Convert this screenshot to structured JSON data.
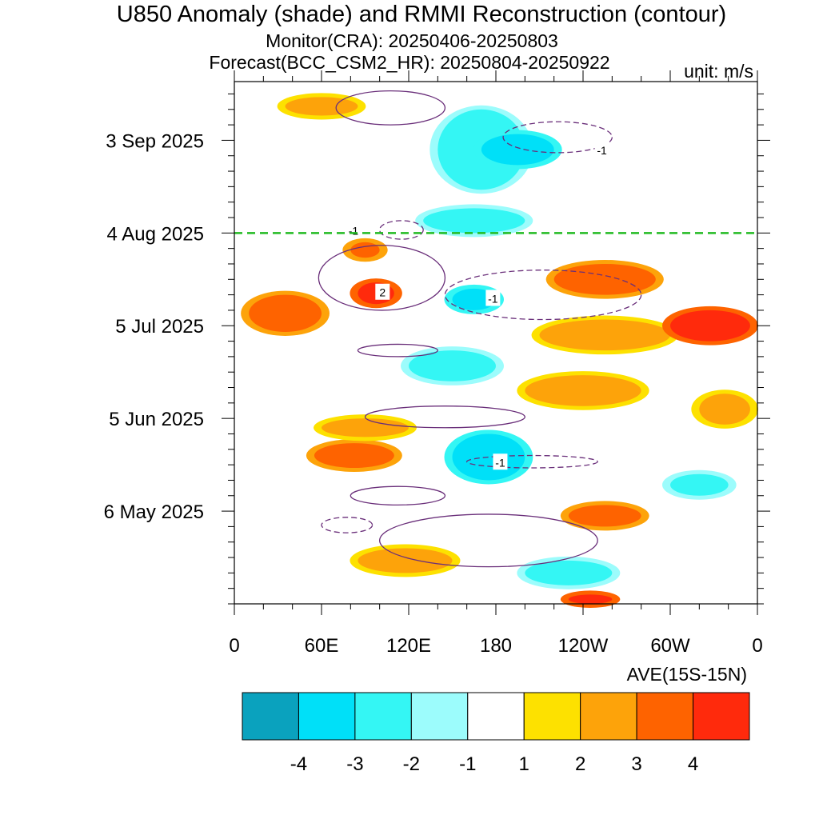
{
  "chart_data": {
    "type": "heatmap",
    "title": "U850 Anomaly (shade) and RMMI Reconstruction (contour)",
    "subtitle_monitor": "Monitor(CRA): 20250406-20250803",
    "subtitle_forecast": "Forecast(BCC_CSM2_HR): 20250804-20250922",
    "unit_label": "unit: m/s",
    "region_label": "AVE(15S-15N)",
    "x_axis": {
      "ticks": [
        "0",
        "60E",
        "120E",
        "180",
        "120W",
        "60W",
        "0"
      ],
      "lon_values": [
        0,
        60,
        120,
        180,
        240,
        300,
        360
      ],
      "range": [
        0,
        360
      ]
    },
    "y_axis": {
      "ticks": [
        "3 Sep 2025",
        "4 Aug 2025",
        "5 Jul 2025",
        "5 Jun 2025",
        "6 May 2025"
      ],
      "day_values": [
        150,
        120,
        90,
        60,
        30
      ],
      "range": [
        "2025-04-06",
        "2025-09-22"
      ]
    },
    "forecast_start_line": {
      "date": "2025-08-04",
      "color": "#22bb22"
    },
    "colorbar": {
      "labels": [
        "-4",
        "-3",
        "-2",
        "-1",
        "1",
        "2",
        "3",
        "4"
      ],
      "colors": [
        "#0aa2be",
        "#00e0f8",
        "#34f6f4",
        "#9cfcfc",
        "#ffffff",
        "#fde100",
        "#fda30a",
        "#fe6300",
        "#ff2a0c"
      ]
    },
    "contour_labels": [
      "-1",
      "-1",
      "2",
      "-1",
      "-1"
    ],
    "shaded_regions": [
      {
        "lon": [
          35,
          85
        ],
        "days": [
          158,
          164
        ],
        "level": 2
      },
      {
        "lon": [
          80,
          100
        ],
        "days": [
          112,
          117
        ],
        "level": 3
      },
      {
        "lon": [
          85,
          110
        ],
        "days": [
          97,
          104
        ],
        "level": 4
      },
      {
        "lon": [
          10,
          60
        ],
        "days": [
          88,
          100
        ],
        "level": 3
      },
      {
        "lon": [
          140,
          200
        ],
        "days": [
          134,
          160
        ],
        "level": -2
      },
      {
        "lon": [
          170,
          220
        ],
        "days": [
          142,
          152
        ],
        "level": -3
      },
      {
        "lon": [
          130,
          200
        ],
        "days": [
          120,
          128
        ],
        "level": -2
      },
      {
        "lon": [
          150,
          180
        ],
        "days": [
          95,
          102
        ],
        "level": -3
      },
      {
        "lon": [
          120,
          180
        ],
        "days": [
          72,
          82
        ],
        "level": -2
      },
      {
        "lon": [
          150,
          200
        ],
        "days": [
          40,
          55
        ],
        "level": -3
      },
      {
        "lon": [
          200,
          260
        ],
        "days": [
          6,
          14
        ],
        "level": -2
      },
      {
        "lon": [
          210,
          300
        ],
        "days": [
          82,
          92
        ],
        "level": 2
      },
      {
        "lon": [
          220,
          290
        ],
        "days": [
          100,
          110
        ],
        "level": 3
      },
      {
        "lon": [
          300,
          355
        ],
        "days": [
          85,
          95
        ],
        "level": 4
      },
      {
        "lon": [
          230,
          280
        ],
        "days": [
          25,
          32
        ],
        "level": 3
      },
      {
        "lon": [
          200,
          280
        ],
        "days": [
          64,
          74
        ],
        "level": 2
      },
      {
        "lon": [
          230,
          260
        ],
        "days": [
          0,
          3
        ],
        "level": 4
      },
      {
        "lon": [
          55,
          110
        ],
        "days": [
          44,
          52
        ],
        "level": 3
      },
      {
        "lon": [
          85,
          150
        ],
        "days": [
          10,
          18
        ],
        "level": 2
      },
      {
        "lon": [
          60,
          120
        ],
        "days": [
          54,
          60
        ],
        "level": 2
      },
      {
        "lon": [
          320,
          355
        ],
        "days": [
          58,
          68
        ],
        "level": 2
      },
      {
        "lon": [
          300,
          340
        ],
        "days": [
          35,
          42
        ],
        "level": -2
      }
    ],
    "contours": [
      {
        "level": -1,
        "lon": [
          185,
          260
        ],
        "days": [
          146,
          156
        ],
        "label_at": [
          253,
          147
        ]
      },
      {
        "level": -1,
        "lon": [
          100,
          130
        ],
        "days": [
          118,
          124
        ],
        "label_at": [
          82,
          121
        ]
      },
      {
        "level": 2,
        "lon": [
          58,
          145
        ],
        "days": [
          95,
          116
        ],
        "label_at": [
          102,
          101
        ]
      },
      {
        "level": -1,
        "lon": [
          145,
          280
        ],
        "days": [
          92,
          108
        ],
        "label_at": [
          178,
          99
        ]
      },
      {
        "level": -1,
        "lon": [
          160,
          250
        ],
        "days": [
          44,
          48
        ],
        "label_at": [
          183,
          46
        ]
      },
      {
        "level": 1,
        "lon": [
          85,
          140
        ],
        "days": [
          80,
          84
        ],
        "label_at": null
      },
      {
        "level": 1,
        "lon": [
          90,
          200
        ],
        "days": [
          57,
          64
        ],
        "label_at": null
      },
      {
        "level": 1,
        "lon": [
          80,
          145
        ],
        "days": [
          32,
          38
        ],
        "label_at": null
      },
      {
        "level": 1,
        "lon": [
          100,
          250
        ],
        "days": [
          12,
          29
        ],
        "label_at": null
      },
      {
        "level": -1,
        "lon": [
          60,
          95
        ],
        "days": [
          23,
          28
        ],
        "label_at": null
      },
      {
        "level": 1,
        "lon": [
          70,
          145
        ],
        "days": [
          155,
          166
        ],
        "label_at": null
      }
    ]
  }
}
